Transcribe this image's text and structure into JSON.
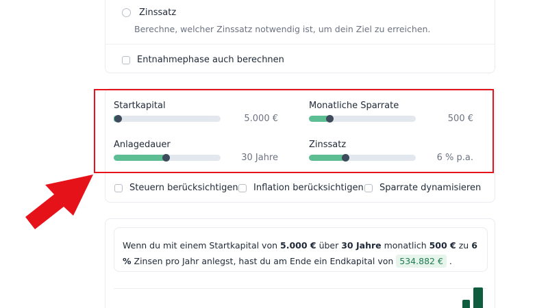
{
  "top_card": {
    "radio_label": "Zinssatz",
    "radio_description": "Berechne, welcher Zinssatz notwendig ist, um dein Ziel zu erreichen.",
    "withdrawal_label": "Entnahmephase auch berechnen"
  },
  "sliders": [
    {
      "label": "Startkapital",
      "value_text": "5.000 €",
      "fill": 0.04
    },
    {
      "label": "Monatliche Sparrate",
      "value_text": "500 €",
      "fill": 0.19
    },
    {
      "label": "Anlagedauer",
      "value_text": "30 Jahre",
      "fill": 0.49
    },
    {
      "label": "Zinssatz",
      "value_text": "6 % p.a.",
      "fill": 0.34
    }
  ],
  "options": {
    "taxes": "Steuern berücksichtigen",
    "inflation": "Inflation berücksichtigen",
    "dynamic": "Sparrate dynamisieren"
  },
  "result": {
    "t1": "Wenn du mit einem Startkapital von ",
    "start": "5.000 €",
    "t2": " über ",
    "years": "30 Jahre",
    "t3": " monatlich ",
    "rate": "500 €",
    "t4": " zu ",
    "interest": "6 %",
    "t5": " Zinsen pro Jahr anlegst, hast du am Ende ein Endkapital von ",
    "final": "534.882 €",
    "t6": " ."
  },
  "colors": {
    "accent": "#5dbd93",
    "thumb": "#3d4b5c",
    "highlight": "#e5121a",
    "chart": "#0f5c3f"
  }
}
